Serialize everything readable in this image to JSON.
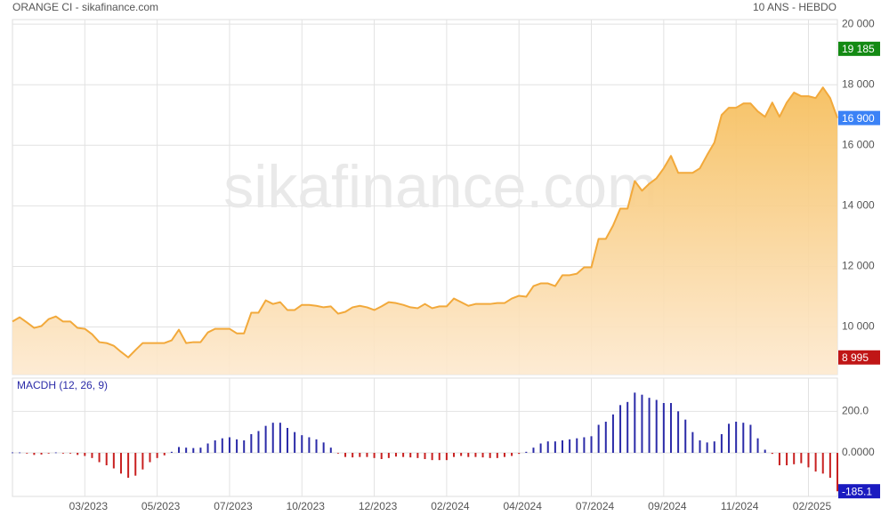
{
  "chart_data": [
    {
      "type": "area",
      "title": "ORANGE CI - sikafinance.com",
      "subtitle": "10 ANS - HEBDO",
      "watermark": "sikafinance.com",
      "categories": [
        null,
        null,
        null,
        null,
        null,
        null,
        null,
        null,
        null,
        null,
        "03/2023",
        null,
        null,
        null,
        null,
        null,
        null,
        null,
        null,
        null,
        "05/2023",
        null,
        null,
        null,
        null,
        null,
        null,
        null,
        null,
        null,
        "07/2023",
        null,
        null,
        null,
        null,
        null,
        null,
        null,
        null,
        null,
        "10/2023",
        null,
        null,
        null,
        null,
        null,
        null,
        null,
        null,
        null,
        "12/2023",
        null,
        null,
        null,
        null,
        null,
        null,
        null,
        null,
        null,
        "02/2024",
        null,
        null,
        null,
        null,
        null,
        null,
        null,
        null,
        null,
        "04/2024",
        null,
        null,
        null,
        null,
        null,
        null,
        null,
        null,
        null,
        "07/2024",
        null,
        null,
        null,
        null,
        null,
        null,
        null,
        null,
        null,
        "09/2024",
        null,
        null,
        null,
        null,
        null,
        null,
        null,
        null,
        null,
        "11/2024",
        null,
        null,
        null,
        null,
        null,
        null,
        null,
        null,
        null,
        "02/2025",
        null,
        null,
        null,
        null
      ],
      "series": [
        {
          "color": "#f2a93b",
          "fill": "#f7c46a",
          "values": [
            10180,
            10320,
            10150,
            9970,
            10030,
            10260,
            10350,
            10180,
            10180,
            9970,
            9940,
            9760,
            9500,
            9470,
            9380,
            9180,
            8995,
            9240,
            9470,
            9470,
            9470,
            9470,
            9560,
            9910,
            9470,
            9500,
            9500,
            9820,
            9940,
            9940,
            9940,
            9790,
            9790,
            10470,
            10470,
            10880,
            10760,
            10820,
            10560,
            10560,
            10730,
            10730,
            10700,
            10650,
            10680,
            10440,
            10500,
            10650,
            10700,
            10650,
            10560,
            10680,
            10820,
            10790,
            10730,
            10650,
            10620,
            10760,
            10620,
            10680,
            10680,
            10940,
            10820,
            10700,
            10760,
            10760,
            10760,
            10790,
            10790,
            10940,
            11030,
            11000,
            11350,
            11440,
            11440,
            11350,
            11710,
            11710,
            11760,
            11970,
            11970,
            12910,
            12910,
            13350,
            13910,
            13910,
            14820,
            14500,
            14730,
            14910,
            15240,
            15650,
            15090,
            15090,
            15090,
            15240,
            15680,
            16090,
            17000,
            17240,
            17240,
            17380,
            17380,
            17120,
            16940,
            17410,
            16940,
            17410,
            17740,
            17620,
            17620,
            17560,
            17910,
            17560,
            16900
          ]
        }
      ],
      "ylim": [
        8430,
        20150
      ],
      "yticks": [
        {
          "value": 10000,
          "label": "10 000"
        },
        {
          "value": 12000,
          "label": "12 000"
        },
        {
          "value": 14000,
          "label": "14 000"
        },
        {
          "value": 16000,
          "label": "16 000"
        },
        {
          "value": 18000,
          "label": "18 000"
        },
        {
          "value": 20000,
          "label": "20 000"
        }
      ],
      "grid": true,
      "markers": [
        {
          "value": 19185,
          "label": "19 185",
          "color": "#138a13"
        },
        {
          "value": 16900,
          "label": "16 900",
          "color": "#3b82f6"
        },
        {
          "value": 8995,
          "label": "8 995",
          "color": "#c01616"
        }
      ]
    },
    {
      "type": "bar",
      "title": "MACDH (12, 26, 9)",
      "series": [
        {
          "positive_color": "#2b2ba8",
          "negative_color": "#c82020",
          "values": [
            2,
            2,
            -2,
            -10,
            -8,
            -3,
            2,
            -1,
            -2,
            -10,
            -15,
            -25,
            -45,
            -60,
            -75,
            -100,
            -120,
            -110,
            -80,
            -45,
            -25,
            -12,
            5,
            28,
            25,
            23,
            25,
            45,
            60,
            70,
            75,
            65,
            60,
            90,
            105,
            130,
            145,
            145,
            120,
            100,
            85,
            75,
            65,
            50,
            25,
            -3,
            -20,
            -22,
            -20,
            -20,
            -25,
            -30,
            -25,
            -18,
            -20,
            -22,
            -25,
            -30,
            -35,
            -35,
            -35,
            -20,
            -15,
            -20,
            -20,
            -22,
            -25,
            -25,
            -20,
            -15,
            -5,
            5,
            25,
            45,
            55,
            55,
            60,
            65,
            70,
            75,
            80,
            135,
            150,
            185,
            230,
            245,
            290,
            280,
            265,
            255,
            240,
            240,
            200,
            160,
            100,
            60,
            50,
            55,
            90,
            140,
            150,
            145,
            135,
            70,
            15,
            -5,
            -60,
            -60,
            -55,
            -50,
            -70,
            -90,
            -100,
            -120,
            -185.1
          ]
        }
      ],
      "ylim": [
        -210,
        360
      ],
      "yticks": [
        {
          "value": 0,
          "label": "0.0000"
        },
        {
          "value": 200,
          "label": "200.0"
        }
      ],
      "grid": true,
      "markers": [
        {
          "value": -185.1,
          "label": "-185.1",
          "color": "#1a1ac0"
        }
      ]
    }
  ]
}
